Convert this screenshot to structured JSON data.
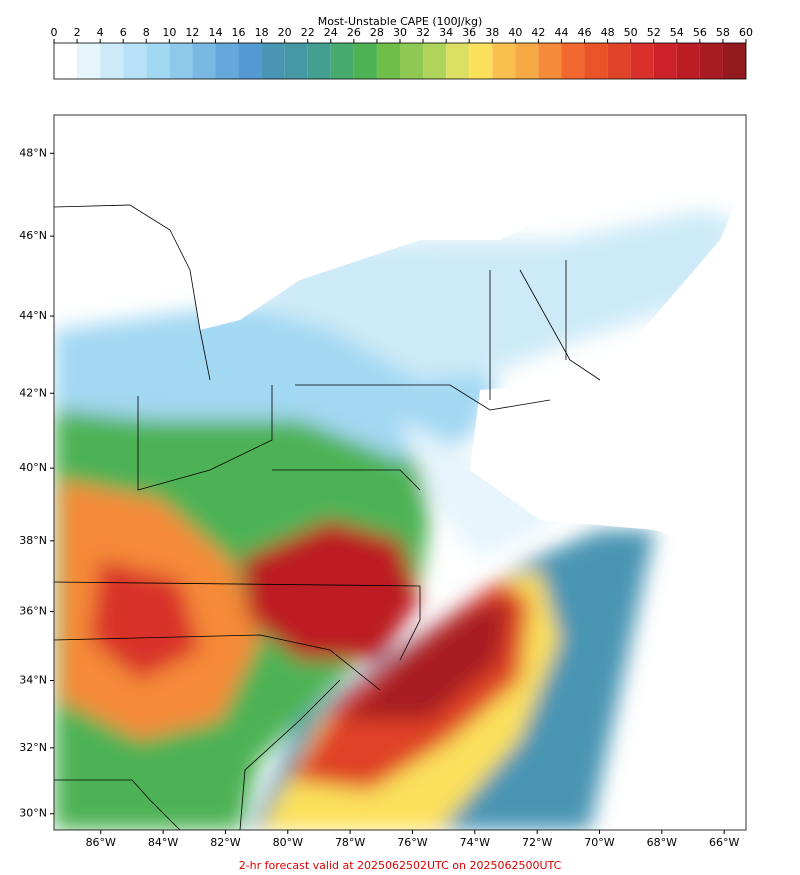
{
  "colorbar": {
    "title": "Most-Unstable CAPE (100J/kg)",
    "levels": [
      0,
      2,
      4,
      6,
      8,
      10,
      12,
      14,
      16,
      18,
      20,
      22,
      24,
      26,
      28,
      30,
      32,
      34,
      36,
      38,
      40,
      42,
      44,
      46,
      48,
      50,
      52,
      54,
      56,
      58,
      60
    ],
    "colors": [
      "#ffffff",
      "#e6f5fc",
      "#cdeaf8",
      "#b7e1f7",
      "#a3d8f3",
      "#8ec9ec",
      "#78b8e2",
      "#65a8dc",
      "#5399d2",
      "#4895b4",
      "#4599a4",
      "#43a090",
      "#48ab6e",
      "#4db254",
      "#6fbe4a",
      "#8fc852",
      "#afd45b",
      "#dbe063",
      "#fbe05b",
      "#f9c04e",
      "#f7a945",
      "#f58a38",
      "#f2682e",
      "#ea5228",
      "#e04328",
      "#d9302b",
      "#cd222a",
      "#bc1d24",
      "#a81b22",
      "#951a1f"
    ]
  },
  "map": {
    "xlim": [
      -87.5,
      -65.3
    ],
    "ylim": [
      29.5,
      48.9
    ],
    "xticks": [
      {
        "value": -86,
        "label": "86°W"
      },
      {
        "value": -84,
        "label": "84°W"
      },
      {
        "value": -82,
        "label": "82°W"
      },
      {
        "value": -80,
        "label": "80°W"
      },
      {
        "value": -78,
        "label": "78°W"
      },
      {
        "value": -76,
        "label": "76°W"
      },
      {
        "value": -74,
        "label": "74°W"
      },
      {
        "value": -72,
        "label": "72°W"
      },
      {
        "value": -70,
        "label": "70°W"
      },
      {
        "value": -68,
        "label": "68°W"
      },
      {
        "value": -66,
        "label": "66°W"
      }
    ],
    "yticks": [
      {
        "value": 30,
        "label": "30°N"
      },
      {
        "value": 32,
        "label": "32°N"
      },
      {
        "value": 34,
        "label": "34°N"
      },
      {
        "value": 36,
        "label": "36°N"
      },
      {
        "value": 38,
        "label": "38°N"
      },
      {
        "value": 40,
        "label": "40°N"
      },
      {
        "value": 42,
        "label": "42°N"
      },
      {
        "value": 44,
        "label": "44°N"
      },
      {
        "value": 46,
        "label": "46°N"
      },
      {
        "value": 48,
        "label": "48°N"
      }
    ]
  },
  "footer": "2-hr forecast valid at 2025062502UTC on 2025062500UTC"
}
